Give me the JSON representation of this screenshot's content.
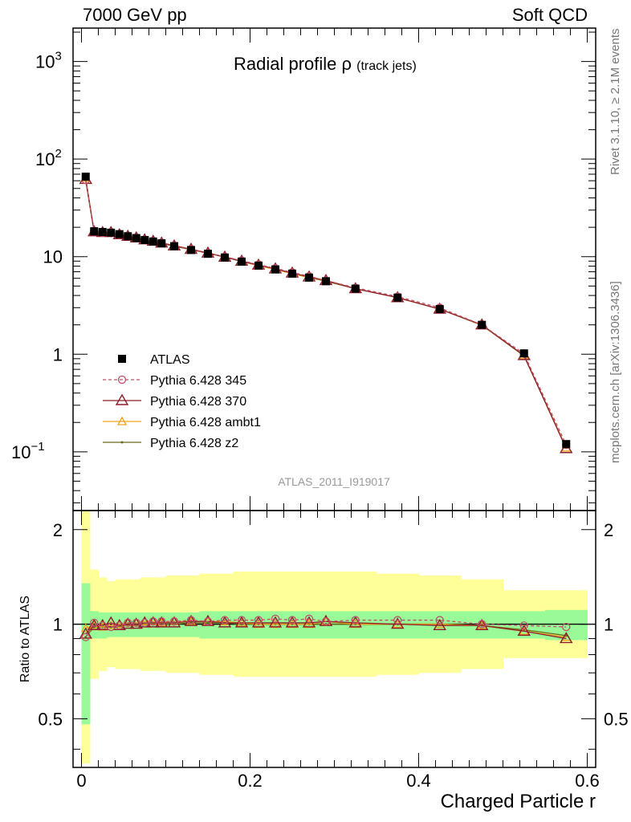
{
  "header": {
    "left": "7000 GeV pp",
    "right": "Soft QCD"
  },
  "side_labels": {
    "top": "Rivet 3.1.10, ≥ 2.1M events",
    "bottom": "mcplots.cern.ch [arXiv:1306.3436]"
  },
  "colors": {
    "atlas": "#000000",
    "p345": "#c0506a",
    "p370": "#8c1c2c",
    "ambt1": "#f0a21a",
    "z2": "#6b6a1a",
    "band_inner": "#98fb98",
    "band_outer": "#ffff99"
  },
  "chart_data": [
    {
      "type": "line",
      "title": "Radial profile ρ",
      "title_suffix": "(track jets)",
      "watermark": "ATLAS_2011_I919017",
      "ylog": true,
      "ylim": [
        0.025,
        2200
      ],
      "xlim": [
        -0.01,
        0.61
      ],
      "ytick_labels": [
        "10^-1",
        "1",
        "10",
        "10^2",
        "10^3"
      ],
      "legend_position": "middle-left",
      "x": [
        0.005,
        0.015,
        0.025,
        0.035,
        0.045,
        0.055,
        0.065,
        0.075,
        0.085,
        0.095,
        0.11,
        0.13,
        0.15,
        0.17,
        0.19,
        0.21,
        0.23,
        0.25,
        0.27,
        0.29,
        0.325,
        0.375,
        0.425,
        0.475,
        0.525,
        0.575
      ],
      "series": [
        {
          "name": "ATLAS",
          "values": [
            66,
            18.2,
            17.9,
            17.6,
            17.0,
            16.2,
            15.5,
            14.8,
            14.3,
            13.7,
            12.8,
            11.7,
            10.7,
            9.8,
            8.9,
            8.1,
            7.4,
            6.7,
            6.1,
            5.6,
            4.7,
            3.8,
            2.9,
            2.0,
            1.02,
            0.12
          ]
        },
        {
          "name": "Pythia 6.428 345",
          "values": [
            61,
            18.3,
            17.6,
            17.4,
            16.8,
            16.3,
            15.6,
            14.9,
            14.5,
            13.9,
            13.0,
            12.0,
            10.9,
            10.0,
            9.1,
            8.3,
            7.6,
            6.9,
            6.3,
            5.7,
            4.8,
            3.9,
            3.0,
            2.0,
            1.01,
            0.118
          ]
        },
        {
          "name": "Pythia 6.428 370",
          "values": [
            62,
            18.0,
            17.7,
            17.7,
            16.8,
            16.2,
            15.6,
            14.9,
            14.4,
            13.8,
            12.9,
            11.9,
            10.9,
            9.9,
            9.0,
            8.2,
            7.5,
            6.8,
            6.2,
            5.7,
            4.7,
            3.8,
            2.9,
            2.0,
            0.97,
            0.108
          ]
        },
        {
          "name": "Pythia 6.428 ambt1",
          "values": [
            64,
            18.1,
            17.5,
            17.5,
            17.0,
            16.3,
            15.7,
            15.1,
            14.6,
            13.9,
            13.0,
            11.9,
            10.9,
            10.0,
            9.0,
            8.1,
            7.4,
            6.7,
            6.1,
            5.7,
            4.7,
            3.8,
            2.9,
            1.99,
            0.97,
            0.11
          ]
        },
        {
          "name": "Pythia 6.428 z2",
          "values": [
            60,
            17.9,
            17.6,
            17.3,
            16.7,
            16.0,
            15.4,
            14.8,
            14.3,
            13.7,
            12.8,
            11.8,
            10.8,
            9.9,
            8.9,
            8.1,
            7.4,
            6.7,
            6.1,
            5.6,
            4.7,
            3.8,
            2.9,
            1.98,
            0.96,
            0.11
          ]
        }
      ]
    },
    {
      "type": "line",
      "ylabel": "Ratio to ATLAS",
      "xlabel": "Charged Particle r",
      "ylog": true,
      "ylim": [
        0.35,
        2.3
      ],
      "xlim": [
        -0.01,
        0.61
      ],
      "ytick_labels": [
        "0.5",
        "1",
        "2"
      ],
      "xtick_labels": [
        "0",
        "0.2",
        "0.4",
        "0.6"
      ],
      "x": [
        0.005,
        0.015,
        0.025,
        0.035,
        0.045,
        0.055,
        0.065,
        0.075,
        0.085,
        0.095,
        0.11,
        0.13,
        0.15,
        0.17,
        0.19,
        0.21,
        0.23,
        0.25,
        0.27,
        0.29,
        0.325,
        0.375,
        0.425,
        0.475,
        0.525,
        0.575
      ],
      "bin_edges": [
        0.0,
        0.01,
        0.02,
        0.03,
        0.04,
        0.05,
        0.06,
        0.07,
        0.08,
        0.09,
        0.1,
        0.12,
        0.14,
        0.16,
        0.18,
        0.2,
        0.22,
        0.24,
        0.26,
        0.28,
        0.3,
        0.35,
        0.4,
        0.45,
        0.5,
        0.55,
        0.6
      ],
      "band_inner": {
        "low": [
          0.48,
          0.9,
          0.9,
          0.91,
          0.91,
          0.91,
          0.91,
          0.91,
          0.91,
          0.91,
          0.91,
          0.91,
          0.9,
          0.9,
          0.9,
          0.9,
          0.9,
          0.9,
          0.9,
          0.9,
          0.9,
          0.9,
          0.9,
          0.9,
          0.9,
          0.89
        ],
        "high": [
          1.35,
          1.1,
          1.09,
          1.09,
          1.09,
          1.09,
          1.09,
          1.09,
          1.09,
          1.09,
          1.09,
          1.09,
          1.1,
          1.1,
          1.1,
          1.1,
          1.1,
          1.1,
          1.1,
          1.1,
          1.1,
          1.1,
          1.1,
          1.1,
          1.1,
          1.11
        ]
      },
      "band_outer": {
        "low": [
          0.36,
          0.67,
          0.71,
          0.73,
          0.72,
          0.72,
          0.72,
          0.71,
          0.71,
          0.71,
          0.7,
          0.7,
          0.69,
          0.69,
          0.68,
          0.68,
          0.68,
          0.68,
          0.68,
          0.68,
          0.68,
          0.69,
          0.7,
          0.72,
          0.78,
          0.78
        ]
      },
      "series": [
        {
          "name": "Pythia 6.428 345",
          "values": [
            0.91,
            1.01,
            0.99,
            0.98,
            0.99,
            1.01,
            1.01,
            1.01,
            1.02,
            1.02,
            1.02,
            1.03,
            1.02,
            1.03,
            1.03,
            1.03,
            1.04,
            1.03,
            1.04,
            1.02,
            1.03,
            1.03,
            1.03,
            1.0,
            0.99,
            0.98
          ]
        },
        {
          "name": "Pythia 6.428 370",
          "values": [
            0.93,
            0.99,
            0.99,
            1.01,
            0.99,
            1.0,
            1.0,
            1.01,
            1.01,
            1.01,
            1.01,
            1.02,
            1.02,
            1.01,
            1.01,
            1.01,
            1.01,
            1.01,
            1.01,
            1.02,
            1.01,
            1.0,
            0.99,
            0.99,
            0.95,
            0.9
          ]
        },
        {
          "name": "Pythia 6.428 ambt1",
          "values": [
            0.97,
            0.99,
            0.98,
            0.99,
            1.0,
            1.01,
            1.01,
            1.02,
            1.02,
            1.01,
            1.02,
            1.02,
            1.02,
            1.02,
            1.01,
            1.0,
            1.0,
            1.0,
            1.0,
            1.02,
            1.0,
            1.0,
            1.0,
            0.99,
            0.95,
            0.91
          ]
        },
        {
          "name": "Pythia 6.428 z2",
          "values": [
            0.91,
            0.98,
            0.98,
            0.98,
            0.98,
            0.99,
            0.99,
            1.0,
            1.0,
            1.0,
            1.0,
            1.01,
            1.01,
            1.01,
            1.0,
            1.0,
            1.0,
            1.0,
            1.0,
            1.0,
            1.0,
            1.0,
            1.0,
            0.99,
            0.96,
            0.92
          ]
        }
      ]
    }
  ]
}
